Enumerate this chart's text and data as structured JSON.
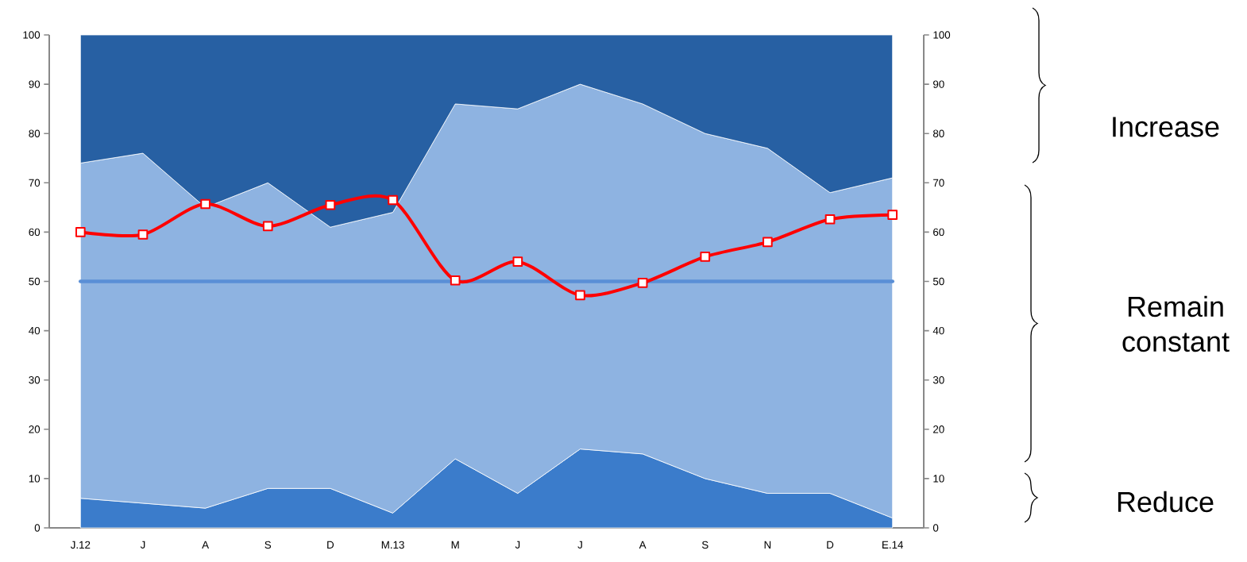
{
  "chart_data": {
    "type": "area",
    "stacked": true,
    "categories": [
      "J.12",
      "J",
      "A",
      "S",
      "D",
      "M.13",
      "M",
      "J",
      "J",
      "A",
      "S",
      "N",
      "D",
      "E.14"
    ],
    "series": [
      {
        "color": "#3b7ccb",
        "values": [
          6,
          5,
          4,
          8,
          8,
          3,
          14,
          7,
          16,
          15,
          10,
          7,
          7,
          2
        ]
      },
      {
        "color": "#8eb3e1",
        "values": [
          68,
          71,
          61,
          62,
          53,
          61,
          72,
          78,
          74,
          71,
          70,
          70,
          61,
          69
        ]
      },
      {
        "color": "#2760a3",
        "values": [
          26,
          24,
          35,
          30,
          39,
          36,
          14,
          15,
          10,
          14,
          20,
          23,
          32,
          29
        ]
      },
      {
        "type": "line",
        "color": "#ff0000",
        "marker": "square",
        "values": [
          60,
          59.5,
          65.7,
          61.2,
          65.5,
          66.5,
          50.2,
          54,
          47.2,
          49.7,
          55,
          58,
          62.6,
          63.5
        ]
      }
    ],
    "ylim": [
      0,
      100
    ],
    "yticks": [
      0,
      10,
      20,
      30,
      40,
      50,
      60,
      70,
      80,
      90,
      100
    ],
    "y2lim": [
      0,
      100
    ],
    "y2ticks": [
      0,
      10,
      20,
      30,
      40,
      50,
      60,
      70,
      80,
      90,
      100
    ],
    "ref_lines": [
      {
        "axis": "y",
        "value": 50,
        "color": "#5a8fd6"
      }
    ],
    "annotations": [
      "Increase",
      "Remain constant",
      "Reduce"
    ]
  }
}
